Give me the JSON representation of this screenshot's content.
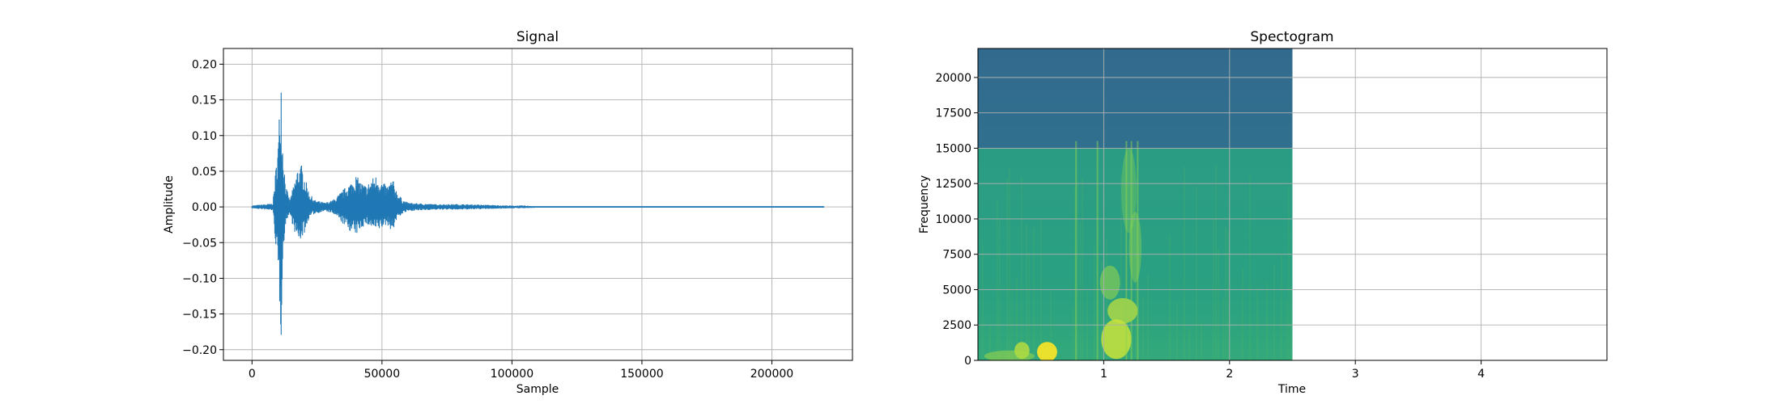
{
  "chart_data": [
    {
      "type": "line",
      "title": "Signal",
      "xlabel": "Sample",
      "ylabel": "Amplitude",
      "xlim": [
        -11000,
        231000
      ],
      "ylim": [
        -0.215,
        0.222
      ],
      "xticks": [
        0,
        50000,
        100000,
        150000,
        200000
      ],
      "xtick_labels": [
        "0",
        "50000",
        "100000",
        "150000",
        "200000"
      ],
      "yticks": [
        -0.2,
        -0.15,
        -0.1,
        -0.05,
        0.0,
        0.05,
        0.1,
        0.15,
        0.2
      ],
      "ytick_labels": [
        "−0.20",
        "−0.15",
        "−0.10",
        "−0.05",
        "0.00",
        "0.05",
        "0.10",
        "0.15",
        "0.20"
      ],
      "grid": true,
      "color": "#1f77b4",
      "series": [
        {
          "x": [
            0,
            8000,
            9500,
            10200,
            10800,
            11200,
            11600,
            12200,
            13000,
            14500,
            16000,
            17500,
            19000,
            20500,
            22000,
            24000,
            26000,
            28000,
            30000,
            32000,
            34000,
            36000,
            38000,
            40000,
            42000,
            44000,
            46000,
            48000,
            50000,
            52000,
            54000,
            56000,
            58000,
            60000,
            65000,
            70000,
            80000,
            90000,
            100000,
            105000,
            110000,
            110500,
            150000,
            220000
          ],
          "y_max": [
            0.002,
            0.005,
            0.07,
            0.1,
            0.17,
            0.203,
            0.11,
            0.07,
            0.03,
            0.01,
            0.03,
            0.055,
            0.06,
            0.04,
            0.02,
            0.01,
            0.008,
            0.006,
            0.008,
            0.012,
            0.02,
            0.028,
            0.035,
            0.045,
            0.035,
            0.03,
            0.04,
            0.045,
            0.035,
            0.03,
            0.04,
            0.02,
            0.01,
            0.006,
            0.005,
            0.004,
            0.004,
            0.003,
            0.002,
            0.002,
            0.001,
            0.0005,
            0.0005,
            0.0005
          ],
          "y_min": [
            -0.002,
            -0.005,
            -0.07,
            -0.11,
            -0.15,
            -0.19,
            -0.1,
            -0.06,
            -0.02,
            -0.01,
            -0.03,
            -0.05,
            -0.045,
            -0.035,
            -0.015,
            -0.01,
            -0.008,
            -0.006,
            -0.008,
            -0.012,
            -0.02,
            -0.028,
            -0.035,
            -0.04,
            -0.03,
            -0.025,
            -0.03,
            -0.035,
            -0.03,
            -0.025,
            -0.035,
            -0.015,
            -0.01,
            -0.006,
            -0.005,
            -0.004,
            -0.004,
            -0.003,
            -0.002,
            -0.002,
            -0.001,
            -0.0005,
            -0.0005,
            -0.0005
          ]
        }
      ]
    },
    {
      "type": "heatmap",
      "title": "Spectogram",
      "xlabel": "Time",
      "ylabel": "Frequency",
      "xlim": [
        0,
        5.0
      ],
      "ylim": [
        0,
        22050
      ],
      "xticks": [
        1,
        2,
        3,
        4
      ],
      "xtick_labels": [
        "1",
        "2",
        "3",
        "4"
      ],
      "yticks": [
        0,
        2500,
        5000,
        7500,
        10000,
        12500,
        15000,
        17500,
        20000
      ],
      "ytick_labels": [
        "0",
        "2500",
        "5000",
        "7500",
        "10000",
        "12500",
        "15000",
        "17500",
        "20000"
      ],
      "grid": true,
      "colormap": "viridis",
      "data_extent_time": [
        0,
        2.5
      ],
      "cutoff_frequency": 15000,
      "colors": {
        "upper_band": "#2f6b8e",
        "lower_band": "#2aa082",
        "hot": "#c8e33a",
        "peak": "#fde725"
      }
    }
  ]
}
